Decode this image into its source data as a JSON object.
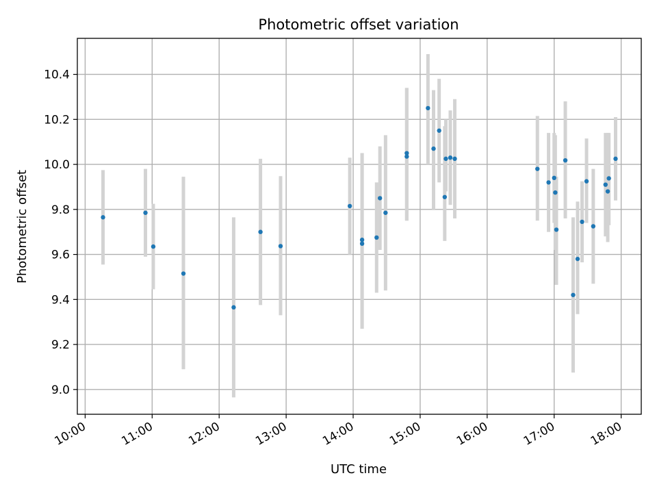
{
  "chart_data": {
    "type": "scatter",
    "title": "Photometric offset variation",
    "xlabel": "UTC time",
    "ylabel": "Photometric offset",
    "x_ticks": [
      "10:00",
      "11:00",
      "12:00",
      "13:00",
      "14:00",
      "15:00",
      "16:00",
      "17:00",
      "18:00"
    ],
    "y_ticks": [
      "9.0",
      "9.2",
      "9.4",
      "9.6",
      "9.8",
      "10.0",
      "10.2",
      "10.4"
    ],
    "xlim": [
      "09:53",
      "18:18"
    ],
    "ylim": [
      8.89,
      10.56
    ],
    "grid": true,
    "point_color": "#1f77b4",
    "errorbar_color": "#d3d3d3",
    "points": [
      {
        "x": "10:16",
        "y": 9.765,
        "low": 9.555,
        "high": 9.975
      },
      {
        "x": "10:54",
        "y": 9.785,
        "low": 9.59,
        "high": 9.98
      },
      {
        "x": "11:01",
        "y": 9.635,
        "low": 9.445,
        "high": 9.825
      },
      {
        "x": "11:28",
        "y": 9.515,
        "low": 9.09,
        "high": 9.945
      },
      {
        "x": "12:13",
        "y": 9.365,
        "low": 8.965,
        "high": 9.765
      },
      {
        "x": "12:37",
        "y": 9.7,
        "low": 9.375,
        "high": 10.025
      },
      {
        "x": "12:55",
        "y": 9.637,
        "low": 9.33,
        "high": 9.948
      },
      {
        "x": "13:57",
        "y": 9.815,
        "low": 9.6,
        "high": 10.03
      },
      {
        "x": "14:08",
        "y": 9.665,
        "low": 9.27,
        "high": 10.05
      },
      {
        "x": "14:08",
        "y": 9.648,
        "low": 9.27,
        "high": 10.05
      },
      {
        "x": "14:21",
        "y": 9.675,
        "low": 9.43,
        "high": 9.92
      },
      {
        "x": "14:24",
        "y": 9.85,
        "low": 9.62,
        "high": 10.08
      },
      {
        "x": "14:29",
        "y": 9.785,
        "low": 9.44,
        "high": 10.13
      },
      {
        "x": "14:48",
        "y": 10.05,
        "low": 9.75,
        "high": 10.34
      },
      {
        "x": "14:48",
        "y": 10.035,
        "low": 9.75,
        "high": 10.34
      },
      {
        "x": "15:07",
        "y": 10.25,
        "low": 10.0,
        "high": 10.49
      },
      {
        "x": "15:12",
        "y": 10.07,
        "low": 9.8,
        "high": 10.33
      },
      {
        "x": "15:17",
        "y": 10.15,
        "low": 9.92,
        "high": 10.38
      },
      {
        "x": "15:22",
        "y": 9.855,
        "low": 9.66,
        "high": 10.17
      },
      {
        "x": "15:23",
        "y": 10.025,
        "low": 9.88,
        "high": 10.2
      },
      {
        "x": "15:27",
        "y": 10.03,
        "low": 9.82,
        "high": 10.24
      },
      {
        "x": "15:31",
        "y": 10.025,
        "low": 9.76,
        "high": 10.29
      },
      {
        "x": "16:45",
        "y": 9.98,
        "low": 9.75,
        "high": 10.215
      },
      {
        "x": "16:55",
        "y": 9.92,
        "low": 9.7,
        "high": 10.14
      },
      {
        "x": "17:00",
        "y": 9.94,
        "low": 9.74,
        "high": 10.14
      },
      {
        "x": "17:01",
        "y": 9.875,
        "low": 9.62,
        "high": 10.13
      },
      {
        "x": "17:02",
        "y": 9.71,
        "low": 9.465,
        "high": 9.945
      },
      {
        "x": "17:10",
        "y": 10.018,
        "low": 9.76,
        "high": 10.28
      },
      {
        "x": "17:17",
        "y": 9.42,
        "low": 9.075,
        "high": 9.765
      },
      {
        "x": "17:21",
        "y": 9.58,
        "low": 9.335,
        "high": 9.835
      },
      {
        "x": "17:25",
        "y": 9.745,
        "low": 9.565,
        "high": 9.925
      },
      {
        "x": "17:29",
        "y": 9.925,
        "low": 9.74,
        "high": 10.115
      },
      {
        "x": "17:35",
        "y": 9.725,
        "low": 9.47,
        "high": 9.98
      },
      {
        "x": "17:46",
        "y": 9.91,
        "low": 9.68,
        "high": 10.14
      },
      {
        "x": "17:48",
        "y": 9.88,
        "low": 9.655,
        "high": 10.14
      },
      {
        "x": "17:49",
        "y": 9.938,
        "low": 9.73,
        "high": 10.14
      },
      {
        "x": "17:55",
        "y": 10.025,
        "low": 9.84,
        "high": 10.21
      }
    ]
  }
}
